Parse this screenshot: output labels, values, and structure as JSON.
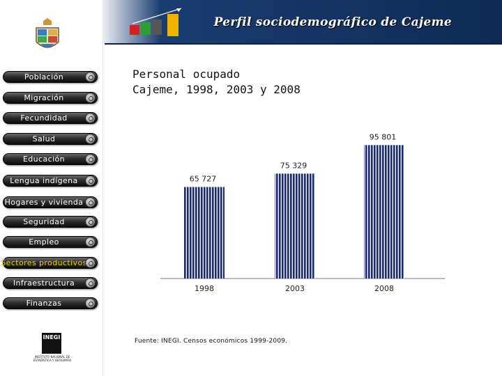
{
  "header": {
    "title": "Perfil sociodemográfico de Cajeme",
    "background": "#1a3d70"
  },
  "sidebar": {
    "items": [
      {
        "label": "Población",
        "active": false
      },
      {
        "label": "Migración",
        "active": false
      },
      {
        "label": "Fecundidad",
        "active": false
      },
      {
        "label": "Salud",
        "active": false
      },
      {
        "label": "Educación",
        "active": false
      },
      {
        "label": "Lengua indígena",
        "active": false
      },
      {
        "label": "Hogares y vivienda",
        "active": false
      },
      {
        "label": "Seguridad",
        "active": false
      },
      {
        "label": "Empleo",
        "active": false
      },
      {
        "label": "Sectores productivos",
        "active": true
      },
      {
        "label": "Infraestructura",
        "active": false
      },
      {
        "label": "Finanzas",
        "active": false
      }
    ],
    "logo_text": "INEGI",
    "logo_subtext": "INSTITUTO NACIONAL DE ESTADÍSTICA Y GEOGRAFÍA"
  },
  "chart_title_line1": "Personal ocupado",
  "chart_title_line2": "Cajeme, 1998, 2003 y 2008",
  "source": "Fuente: INEGI. Censos económicos 1999-2009.",
  "chart_data": {
    "type": "bar",
    "title": "Personal ocupado Cajeme, 1998, 2003 y 2008",
    "categories": [
      "1998",
      "2003",
      "2008"
    ],
    "values": [
      65727,
      75329,
      95801
    ],
    "value_labels": [
      "65 727",
      "75 329",
      "95 801"
    ],
    "xlabel": "",
    "ylabel": "",
    "ylim": [
      0,
      100000
    ],
    "grid": false,
    "bar_color": "#1a2a6c",
    "stripe_color": "#ffffff"
  }
}
